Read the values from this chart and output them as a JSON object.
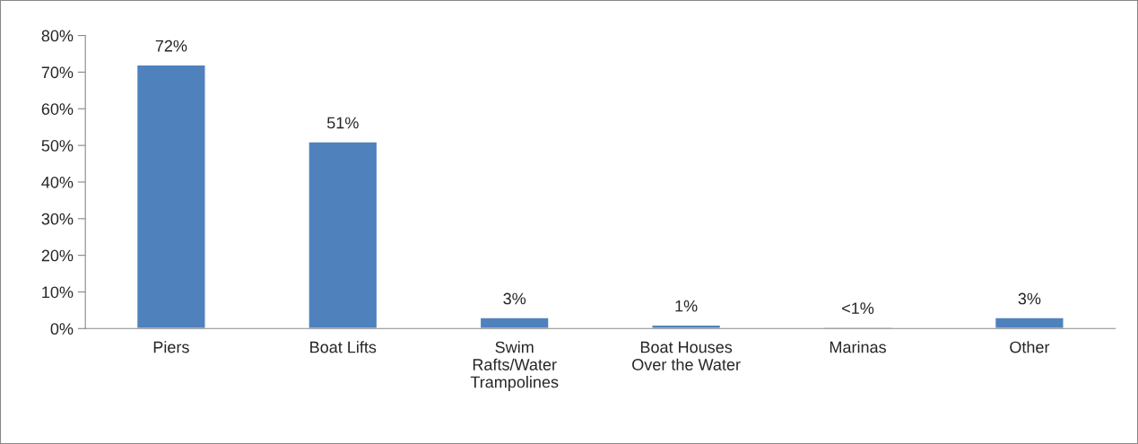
{
  "chart_data": {
    "type": "bar",
    "categories": [
      "Piers",
      "Boat Lifts",
      "Swim\nRafts/Water\nTrampolines",
      "Boat Houses\nOver the Water",
      "Marinas",
      "Other"
    ],
    "values": [
      72,
      51,
      3,
      1,
      0.4,
      3
    ],
    "value_labels": [
      "72%",
      "51%",
      "3%",
      "1%",
      "<1%",
      "3%"
    ],
    "color": "#4f81bd",
    "ylim": [
      0,
      80
    ],
    "yticks": [
      {
        "value": 0,
        "label": "0%"
      },
      {
        "value": 10,
        "label": "10%"
      },
      {
        "value": 20,
        "label": "20%"
      },
      {
        "value": 30,
        "label": "30%"
      },
      {
        "value": 40,
        "label": "40%"
      },
      {
        "value": 50,
        "label": "50%"
      },
      {
        "value": 60,
        "label": "60%"
      },
      {
        "value": 70,
        "label": "70%"
      },
      {
        "value": 80,
        "label": "80%"
      }
    ],
    "grid": false,
    "legend": false
  }
}
